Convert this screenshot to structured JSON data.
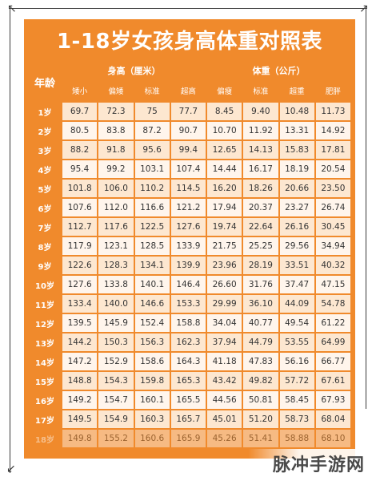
{
  "title": "1-18岁女孩身高体重对照表",
  "headers": {
    "age": "年龄",
    "height_group": "身高（厘米）",
    "weight_group": "体重（公斤）",
    "height_cols": [
      "矮小",
      "偏矮",
      "标准",
      "超高"
    ],
    "weight_cols": [
      "偏瘦",
      "标准",
      "超重",
      "肥胖"
    ]
  },
  "rows": [
    {
      "age": "1岁",
      "h": [
        "69.7",
        "72.3",
        "75",
        "77.7"
      ],
      "w": [
        "8.45",
        "9.40",
        "10.48",
        "11.73"
      ]
    },
    {
      "age": "2岁",
      "h": [
        "80.5",
        "83.8",
        "87.2",
        "90.7"
      ],
      "w": [
        "10.70",
        "11.92",
        "13.31",
        "14.92"
      ]
    },
    {
      "age": "3岁",
      "h": [
        "88.2",
        "91.8",
        "95.6",
        "99.4"
      ],
      "w": [
        "12.65",
        "14.13",
        "15.83",
        "17.81"
      ]
    },
    {
      "age": "4岁",
      "h": [
        "95.4",
        "99.2",
        "103.1",
        "107.4"
      ],
      "w": [
        "14.44",
        "16.17",
        "18.19",
        "20.54"
      ]
    },
    {
      "age": "5岁",
      "h": [
        "101.8",
        "106.0",
        "110.2",
        "114.5"
      ],
      "w": [
        "16.20",
        "18.26",
        "20.66",
        "23.50"
      ]
    },
    {
      "age": "6岁",
      "h": [
        "107.6",
        "112.0",
        "116.6",
        "121.2"
      ],
      "w": [
        "17.94",
        "20.37",
        "23.27",
        "26.74"
      ]
    },
    {
      "age": "7岁",
      "h": [
        "112.7",
        "117.6",
        "122.5",
        "127.6"
      ],
      "w": [
        "19.74",
        "22.64",
        "26.16",
        "30.45"
      ]
    },
    {
      "age": "8岁",
      "h": [
        "117.9",
        "123.1",
        "128.5",
        "133.9"
      ],
      "w": [
        "21.75",
        "25.25",
        "29.56",
        "34.94"
      ]
    },
    {
      "age": "9岁",
      "h": [
        "122.6",
        "128.3",
        "134.1",
        "139.9"
      ],
      "w": [
        "23.96",
        "28.19",
        "33.51",
        "40.32"
      ]
    },
    {
      "age": "10岁",
      "h": [
        "127.6",
        "133.8",
        "140.1",
        "146.4"
      ],
      "w": [
        "26.60",
        "31.76",
        "37.47",
        "47.15"
      ]
    },
    {
      "age": "11岁",
      "h": [
        "133.4",
        "140.0",
        "146.6",
        "153.3"
      ],
      "w": [
        "29.99",
        "36.10",
        "44.09",
        "54.78"
      ]
    },
    {
      "age": "12岁",
      "h": [
        "139.5",
        "145.9",
        "152.4",
        "158.8"
      ],
      "w": [
        "34.04",
        "40.77",
        "49.54",
        "61.22"
      ]
    },
    {
      "age": "13岁",
      "h": [
        "144.2",
        "150.3",
        "156.3",
        "162.3"
      ],
      "w": [
        "37.94",
        "44.79",
        "53.55",
        "64.99"
      ]
    },
    {
      "age": "14岁",
      "h": [
        "147.2",
        "152.9",
        "158.6",
        "164.3"
      ],
      "w": [
        "41.18",
        "47.83",
        "56.16",
        "66.77"
      ]
    },
    {
      "age": "15岁",
      "h": [
        "148.8",
        "154.3",
        "159.8",
        "165.3"
      ],
      "w": [
        "43.42",
        "49.82",
        "57.72",
        "67.61"
      ]
    },
    {
      "age": "16岁",
      "h": [
        "149.2",
        "154.7",
        "160.1",
        "165.5"
      ],
      "w": [
        "44.56",
        "50.81",
        "58.45",
        "67.93"
      ]
    },
    {
      "age": "17岁",
      "h": [
        "149.5",
        "154.9",
        "160.3",
        "165.7"
      ],
      "w": [
        "45.01",
        "51.20",
        "58.73",
        "68.04"
      ]
    },
    {
      "age": "18岁",
      "h": [
        "149.8",
        "155.2",
        "160.6",
        "165.9"
      ],
      "w": [
        "45.26",
        "51.41",
        "58.88",
        "68.10"
      ]
    }
  ],
  "watermark": "脉冲手游网",
  "colors": {
    "header": "#f08a2c",
    "cell": "#fde7d0",
    "cell_alt": "#fff5ec"
  }
}
